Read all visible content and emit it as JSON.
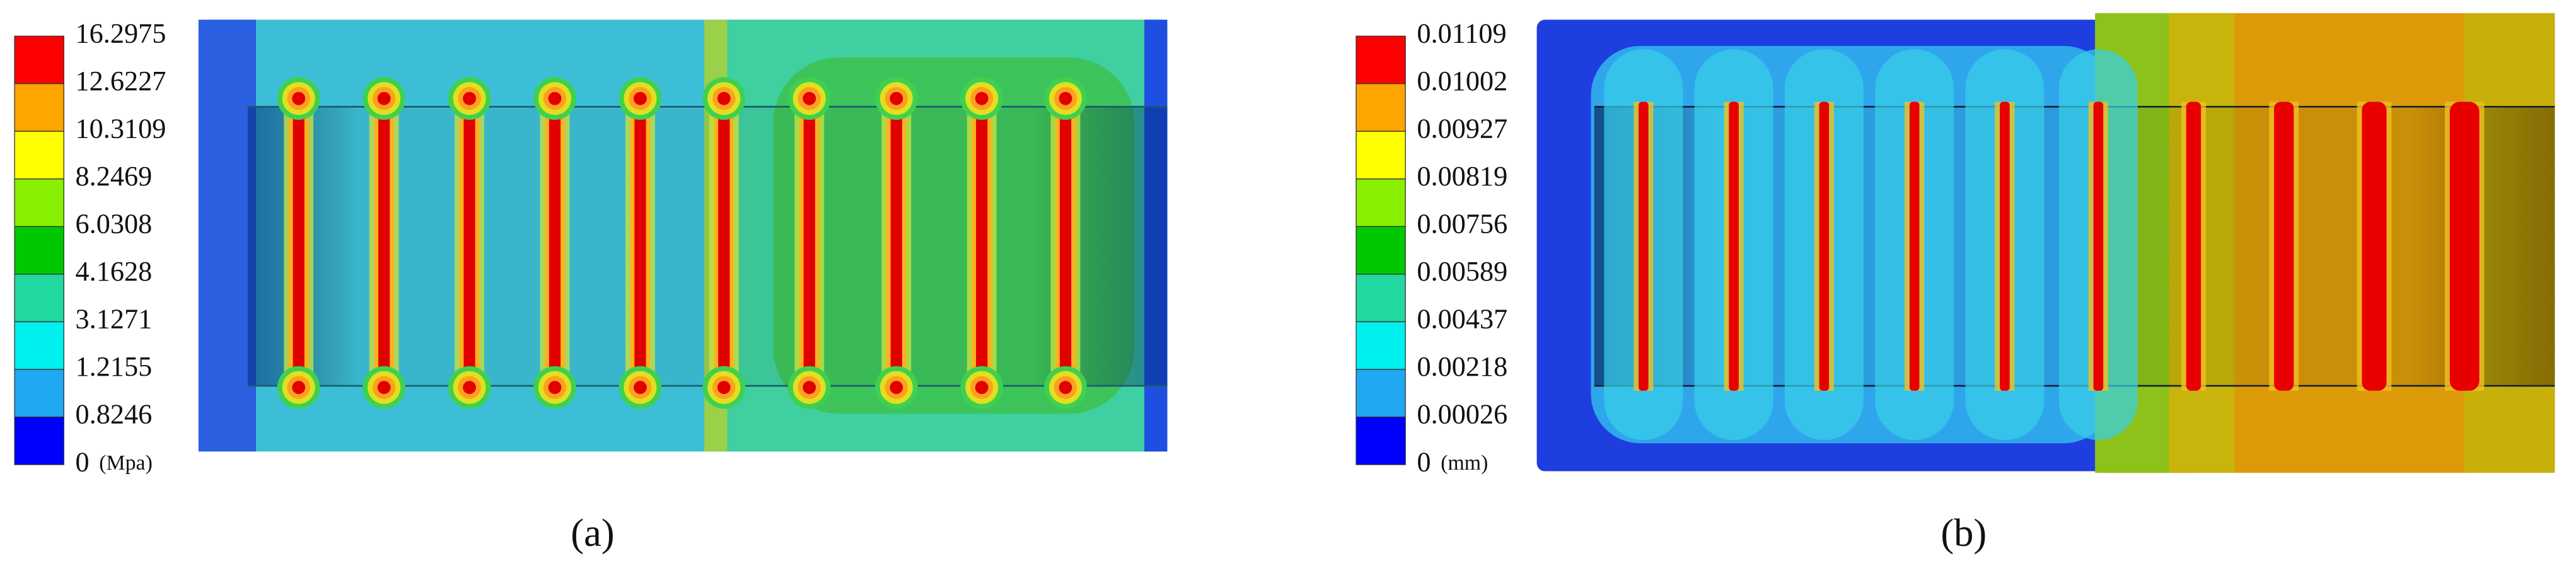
{
  "panel_a": {
    "legend": {
      "labels": [
        "16.2975",
        "12.6227",
        "10.3109",
        "8.2469",
        "6.0308",
        "4.1628",
        "3.1271",
        "1.2155",
        "0.8246",
        "0"
      ],
      "unit": "(Mpa)"
    },
    "caption": "(a)"
  },
  "panel_b": {
    "legend": {
      "labels": [
        "0.01109",
        "0.01002",
        "0.00927",
        "0.00819",
        "0.00756",
        "0.00589",
        "0.00437",
        "0.00218",
        "0.00026",
        "0"
      ],
      "unit": "(mm)"
    },
    "caption": "(b)"
  }
}
